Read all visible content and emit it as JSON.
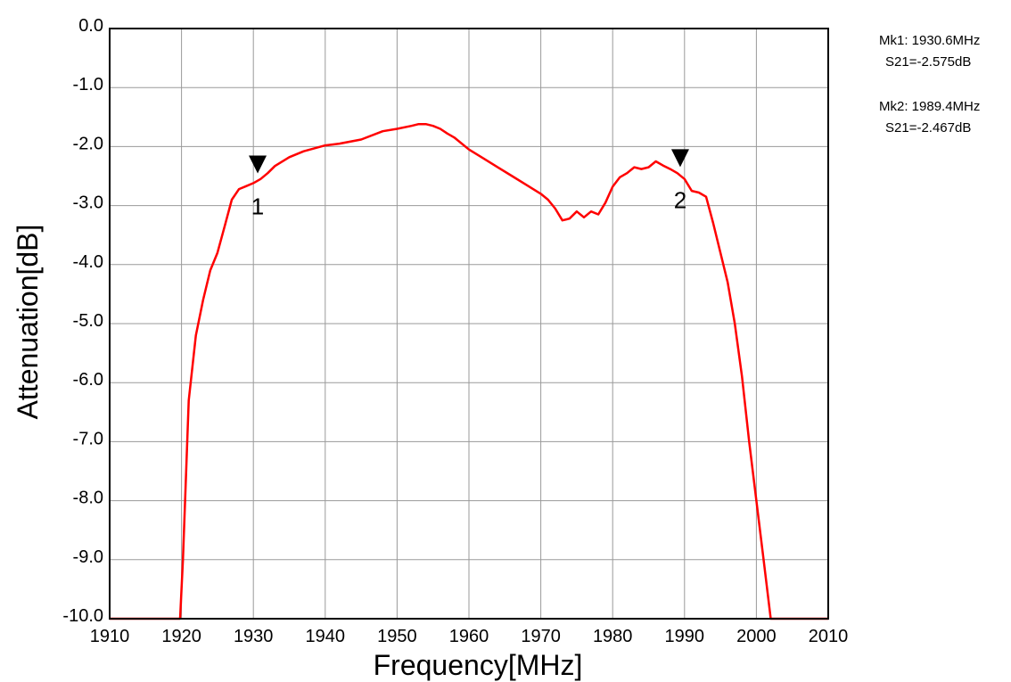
{
  "chart_data": {
    "type": "line",
    "title": "",
    "xlabel": "Frequency[MHz]",
    "ylabel": "Attenuation[dB]",
    "xlim": [
      1910,
      2010
    ],
    "ylim": [
      -10.0,
      0.0
    ],
    "grid": true,
    "x_ticks": [
      1910,
      1920,
      1930,
      1940,
      1950,
      1960,
      1970,
      1980,
      1990,
      2000,
      2010
    ],
    "y_ticks": [
      0.0,
      -1.0,
      -2.0,
      -3.0,
      -4.0,
      -5.0,
      -6.0,
      -7.0,
      -8.0,
      -9.0,
      -10.0
    ],
    "x_tick_labels": [
      "1910",
      "1920",
      "1930",
      "1940",
      "1950",
      "1960",
      "1970",
      "1980",
      "1990",
      "2000",
      "2010"
    ],
    "y_tick_labels": [
      "0.0",
      "-1.0",
      "-2.0",
      "-3.0",
      "-4.0",
      "-5.0",
      "-6.0",
      "-7.0",
      "-8.0",
      "-9.0",
      "-10.0"
    ],
    "series": [
      {
        "color": "#ff0000",
        "x": [
          1910,
          1919.8,
          1920.2,
          1921,
          1922,
          1923,
          1924,
          1925,
          1926,
          1927,
          1928,
          1929,
          1930,
          1931,
          1932,
          1933,
          1935,
          1937,
          1940,
          1942,
          1945,
          1948,
          1950,
          1952,
          1953,
          1954,
          1955,
          1956,
          1957,
          1958,
          1960,
          1962,
          1964,
          1966,
          1968,
          1970,
          1971,
          1972,
          1973,
          1974,
          1975,
          1976,
          1977,
          1978,
          1979,
          1980,
          1981,
          1982,
          1983,
          1984,
          1985,
          1986,
          1987,
          1988,
          1989,
          1990,
          1991,
          1992,
          1993,
          1994,
          1995,
          1996,
          1997,
          1998,
          1999,
          2000,
          2001,
          2002,
          2003,
          2010
        ],
        "y": [
          -10.0,
          -10.0,
          -9.0,
          -6.3,
          -5.2,
          -4.6,
          -4.1,
          -3.8,
          -3.35,
          -2.9,
          -2.72,
          -2.67,
          -2.62,
          -2.55,
          -2.45,
          -2.33,
          -2.18,
          -2.08,
          -1.98,
          -1.95,
          -1.88,
          -1.74,
          -1.7,
          -1.65,
          -1.62,
          -1.62,
          -1.65,
          -1.7,
          -1.78,
          -1.85,
          -2.05,
          -2.2,
          -2.35,
          -2.5,
          -2.65,
          -2.8,
          -2.9,
          -3.05,
          -3.25,
          -3.22,
          -3.1,
          -3.2,
          -3.1,
          -3.15,
          -2.95,
          -2.68,
          -2.52,
          -2.45,
          -2.35,
          -2.38,
          -2.35,
          -2.25,
          -2.32,
          -2.38,
          -2.45,
          -2.55,
          -2.75,
          -2.78,
          -2.85,
          -3.3,
          -3.8,
          -4.3,
          -5.0,
          -5.9,
          -7.0,
          -8.0,
          -9.0,
          -10.0,
          -10.0,
          -10.0
        ]
      }
    ],
    "markers": [
      {
        "label": "1",
        "x": 1930.6,
        "y": -2.575
      },
      {
        "label": "2",
        "x": 1989.4,
        "y": -2.467
      }
    ]
  },
  "readout": [
    {
      "line1": "Mk1: 1930.6MHz",
      "line2": "S21=-2.575dB"
    },
    {
      "line1": "Mk2: 1989.4MHz",
      "line2": "S21=-2.467dB"
    }
  ]
}
